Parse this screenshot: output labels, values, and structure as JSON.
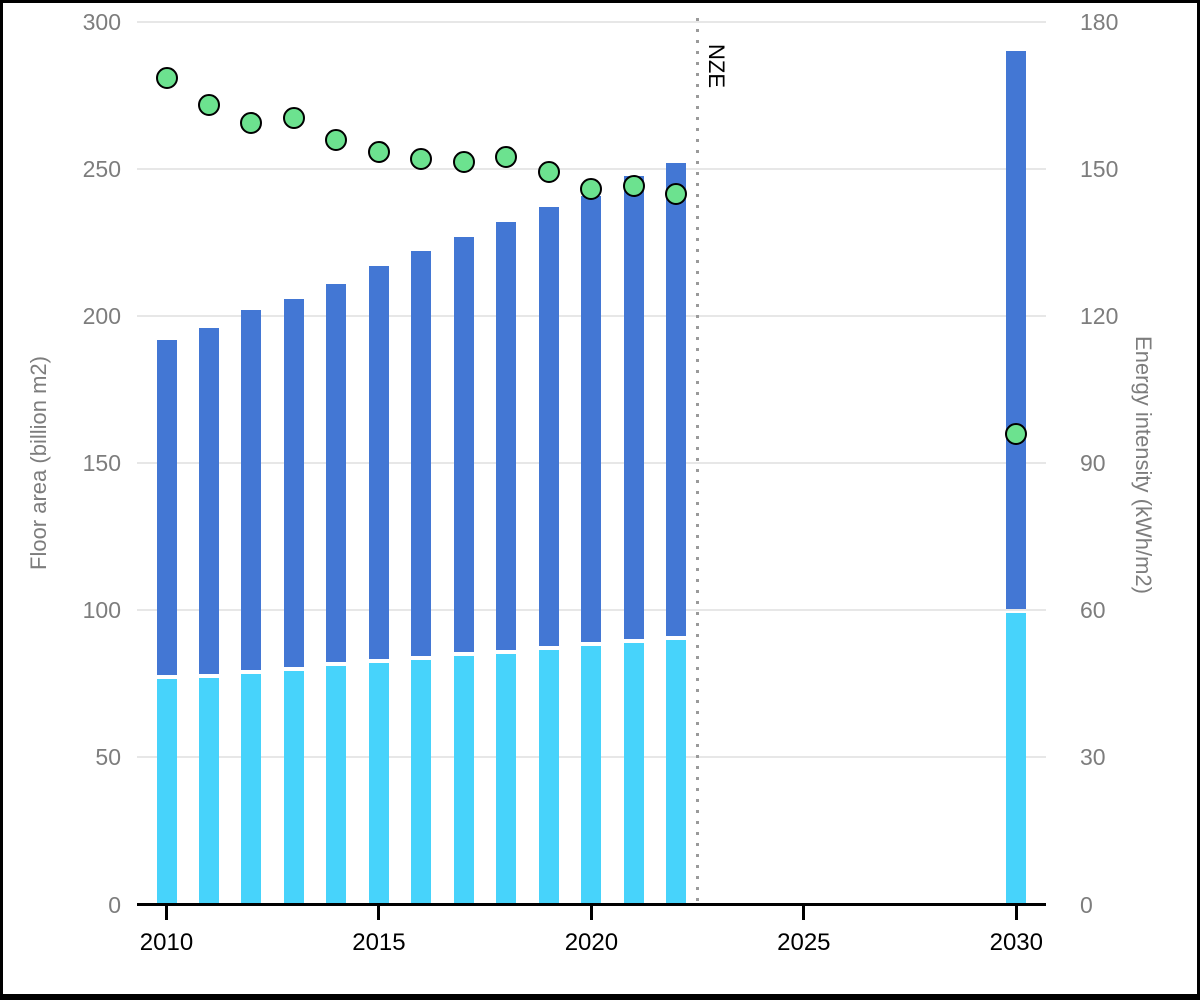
{
  "chart_data": {
    "type": "bar",
    "subtype": "stacked-bars-with-scatter-overlay",
    "title": "",
    "x": [
      2010,
      2011,
      2012,
      2013,
      2014,
      2015,
      2016,
      2017,
      2018,
      2019,
      2020,
      2021,
      2022,
      2030
    ],
    "series": [
      {
        "name": "floor-area-bottom-segment",
        "chart_type": "bar",
        "axis": "left",
        "color_key": "cyan",
        "values": [
          76.5,
          77,
          78.5,
          79.5,
          81,
          82,
          83,
          84.5,
          85,
          86.5,
          88,
          89,
          90,
          99
        ]
      },
      {
        "name": "floor-area-total",
        "chart_type": "bar",
        "axis": "left",
        "color_key": "blue",
        "values": [
          192,
          196,
          202,
          206,
          211,
          217,
          222,
          227,
          232,
          237,
          241,
          247.5,
          252,
          290
        ]
      },
      {
        "name": "energy-intensity",
        "chart_type": "scatter",
        "axis": "right",
        "color_key": "green",
        "values": [
          168.5,
          163,
          159.5,
          160.5,
          156,
          153.5,
          152,
          151.5,
          152.5,
          149.5,
          146,
          146.5,
          145,
          96
        ]
      }
    ],
    "left_axis": {
      "label": "Floor area (billion m2)",
      "ticks": [
        0,
        50,
        100,
        150,
        200,
        250,
        300
      ],
      "range": [
        0,
        300
      ]
    },
    "right_axis": {
      "label": "Energy intensity (kWh/m2)",
      "ticks": [
        0,
        30,
        60,
        90,
        120,
        150,
        180
      ],
      "range": [
        0,
        180
      ]
    },
    "x_axis": {
      "ticks": [
        2010,
        2015,
        2020,
        2025,
        2030
      ],
      "range": [
        2009.3,
        2030.7
      ]
    },
    "annotation": {
      "label": "NZE",
      "x": 2022.5
    },
    "grid": "horizontal",
    "legend": "none"
  },
  "colors": {
    "blue": "#4377d4",
    "cyan": "#47d3fb",
    "green": "#6ce28f",
    "grid": "#e7e7e7",
    "axis_text": "#7d7d7d",
    "x_text": "#000000",
    "annotation_line": "#9a9a9a",
    "dot_stroke": "#000000"
  }
}
